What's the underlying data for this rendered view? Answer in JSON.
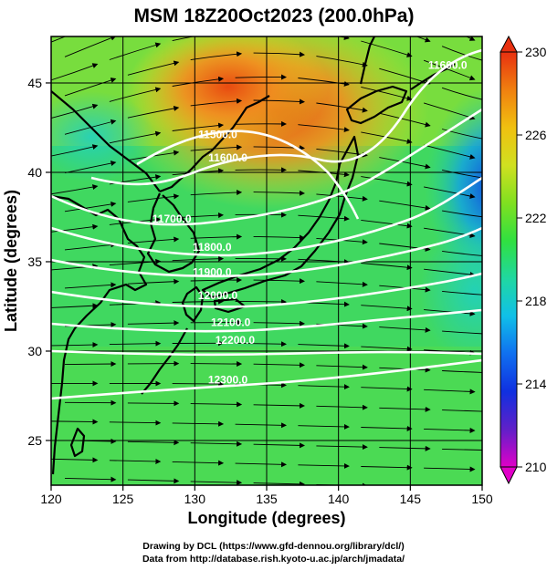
{
  "title": "MSM 18Z20Oct2023 (200.0hPa)",
  "x_axis": {
    "label": "Longitude (degrees)",
    "ticks": [
      120,
      125,
      130,
      135,
      140,
      145,
      150
    ],
    "tick_labels": [
      "120",
      "125",
      "130",
      "135",
      "140",
      "145",
      "150"
    ],
    "range": [
      120,
      150
    ]
  },
  "y_axis": {
    "label": "Latitude  (degrees)",
    "ticks": [
      25,
      30,
      35,
      40,
      45
    ],
    "tick_labels": [
      "25",
      "30",
      "35",
      "40",
      "45"
    ],
    "range": [
      22.5,
      47.6
    ]
  },
  "colorbar": {
    "min": 210,
    "max": 230,
    "labels": [
      "230",
      "226",
      "222",
      "218",
      "214",
      "210"
    ],
    "label_values": [
      230,
      226,
      222,
      218,
      214,
      210
    ],
    "colors": [
      "#e000c8",
      "#6020c8",
      "#1030e0",
      "#1070f0",
      "#10c0e8",
      "#20d8a0",
      "#30e040",
      "#80e020",
      "#d0e020",
      "#f0c010",
      "#f08010",
      "#e83010"
    ]
  },
  "contours": [
    {
      "label": "11500.0",
      "lon": 131.6,
      "lat": 41.9
    },
    {
      "label": "11600.0",
      "lon": 132.3,
      "lat": 40.6
    },
    {
      "label": "11600.0",
      "lon": 147.6,
      "lat": 45.8
    },
    {
      "label": "11700.0",
      "lon": 128.4,
      "lat": 37.2
    },
    {
      "label": "11800.0",
      "lon": 131.2,
      "lat": 35.6
    },
    {
      "label": "11900.0",
      "lon": 131.2,
      "lat": 34.2
    },
    {
      "label": "12000.0",
      "lon": 131.6,
      "lat": 32.9
    },
    {
      "label": "12100.0",
      "lon": 132.5,
      "lat": 31.4
    },
    {
      "label": "12200.0",
      "lon": 132.8,
      "lat": 30.4
    },
    {
      "label": "12300.0",
      "lon": 132.3,
      "lat": 28.2
    }
  ],
  "credits": {
    "line1": "Drawing by DCL (https://www.gfd-dennou.org/library/dcl/)",
    "line2": "Data from http://database.rish.kyoto-u.ac.jp/arch/jmadata/"
  }
}
